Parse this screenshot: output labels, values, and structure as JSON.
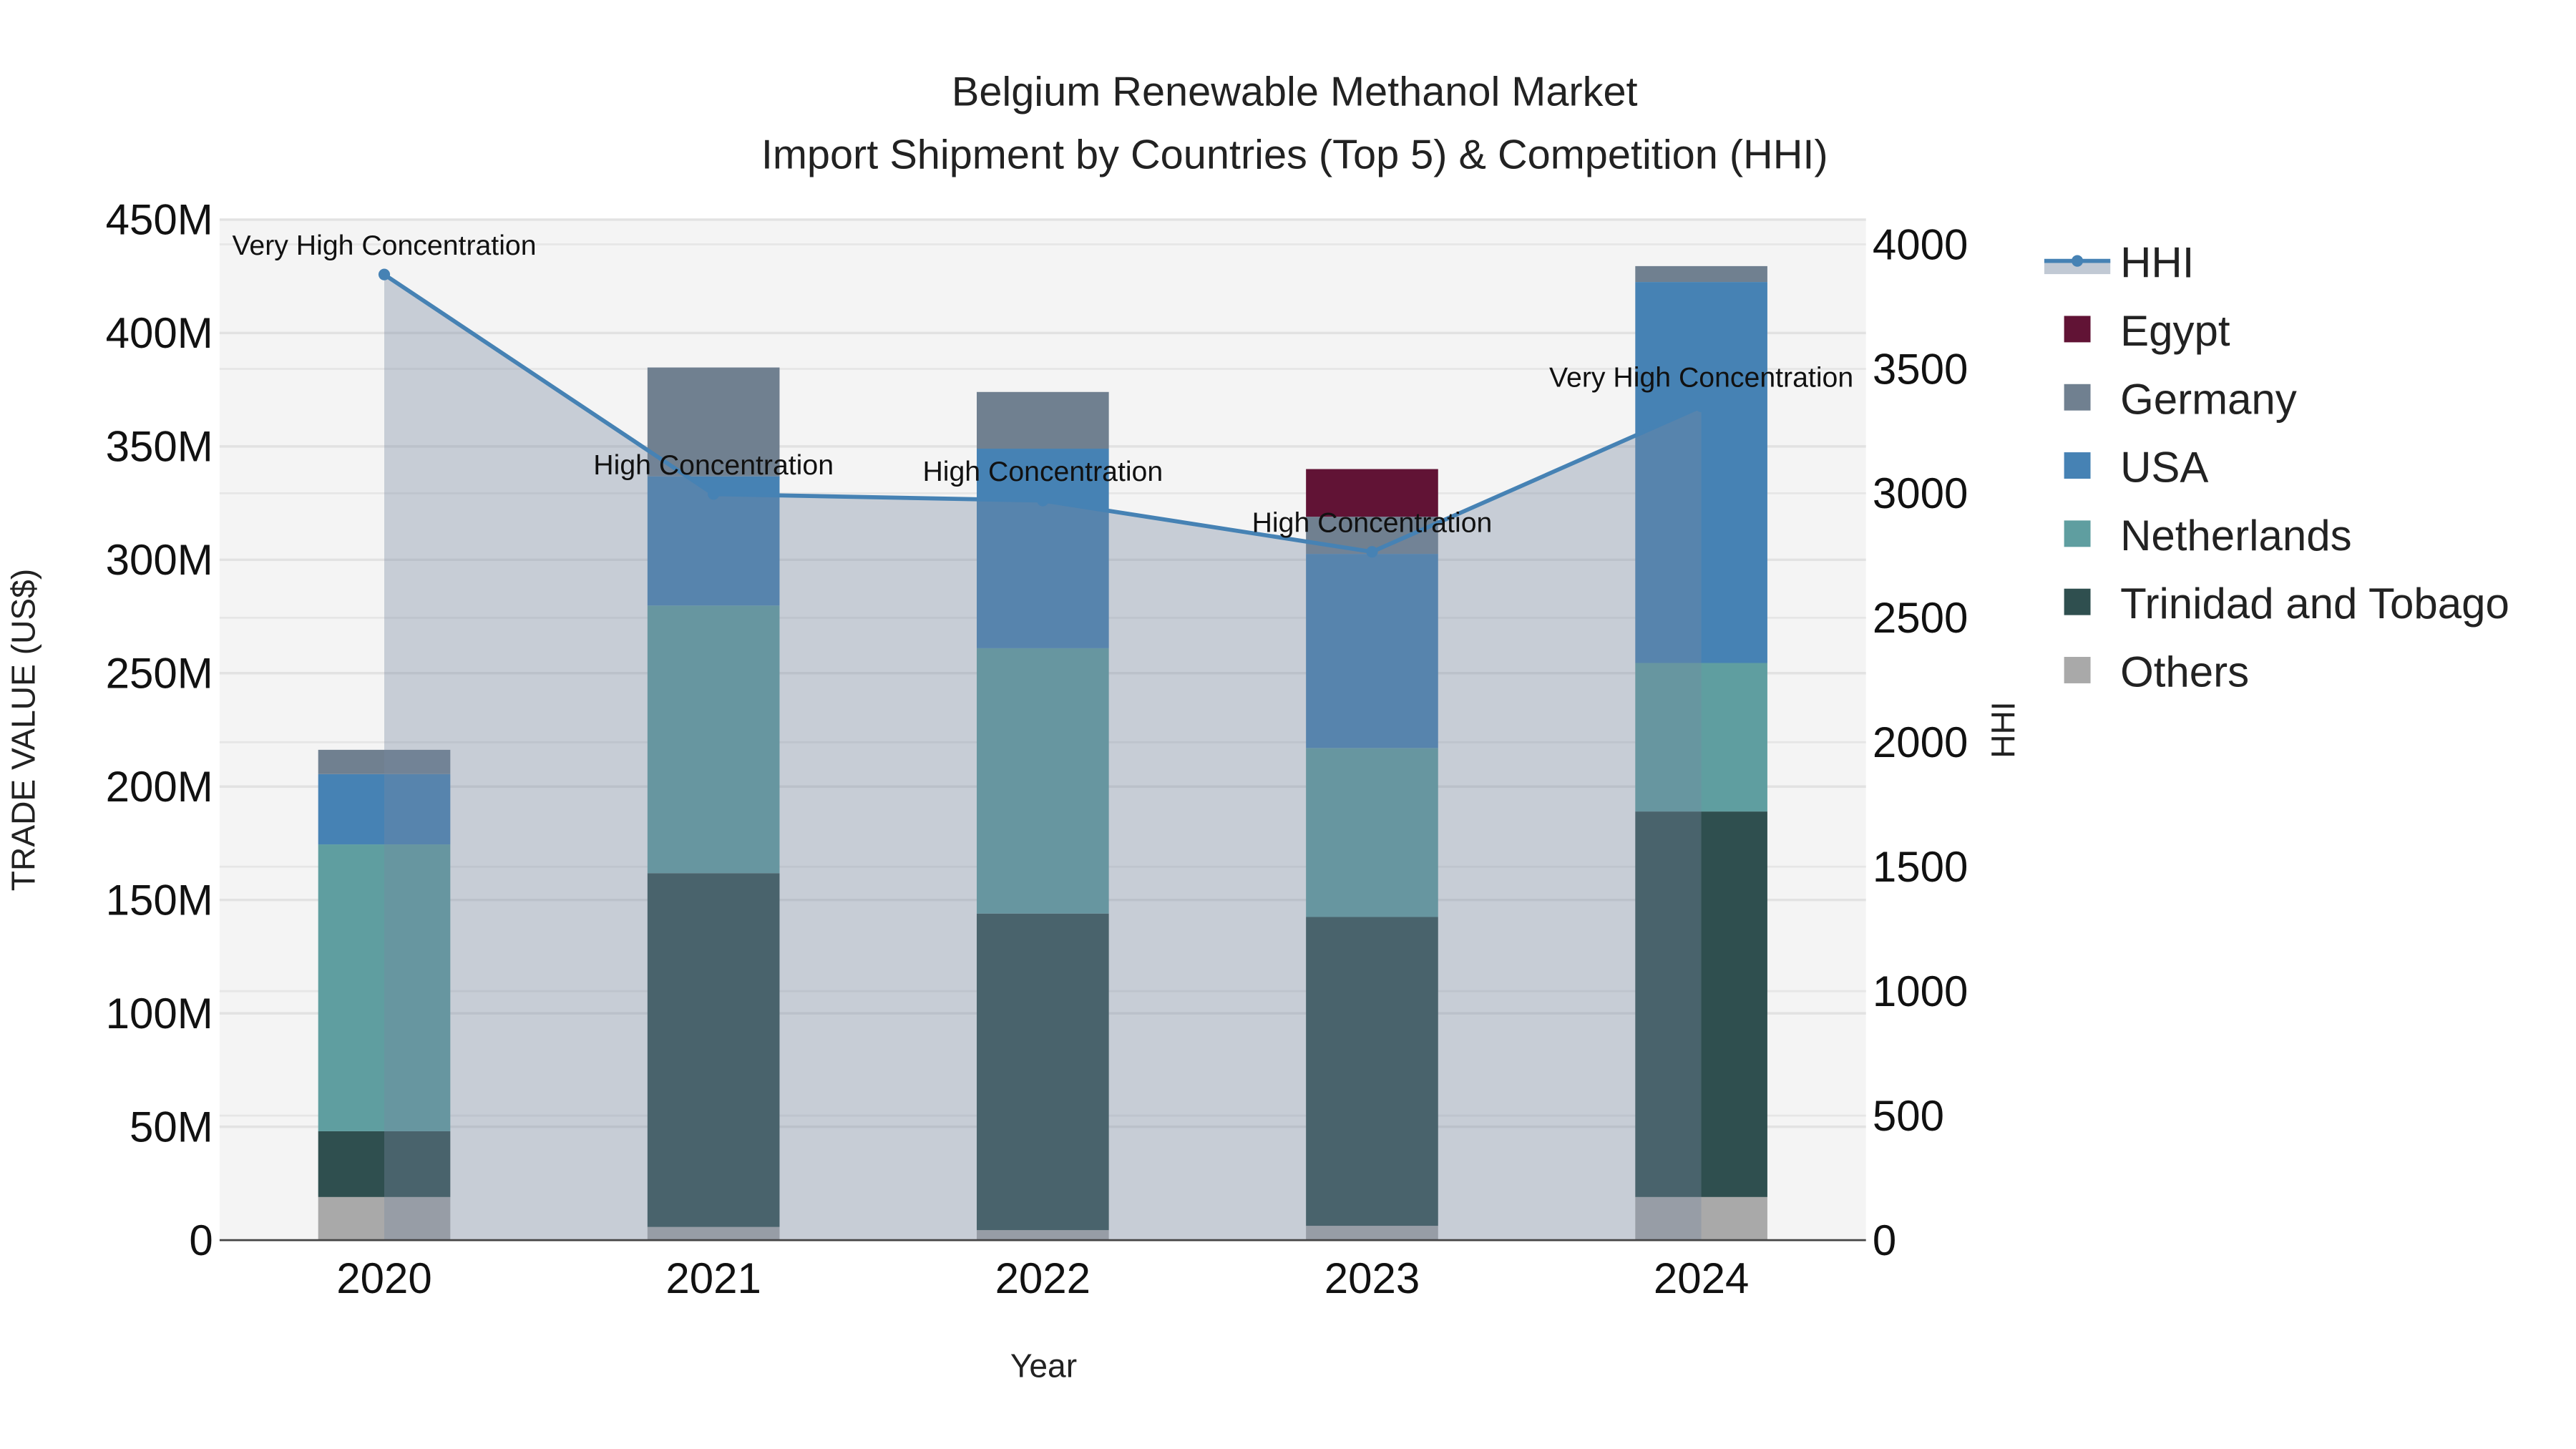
{
  "chart_data": {
    "type": "bar",
    "stacked": true,
    "title": "Belgium Renewable Methanol Market",
    "subtitle": "Import Shipment by Countries (Top 5) & Competition (HHI)",
    "xlabel": "Year",
    "ylabel": "TRADE VALUE (US$)",
    "y2label": "HHI",
    "categories": [
      "2020",
      "2021",
      "2022",
      "2023",
      "2024"
    ],
    "ylim": [
      0,
      450000000
    ],
    "y_ticks": [
      0,
      50000000,
      100000000,
      150000000,
      200000000,
      250000000,
      300000000,
      350000000,
      400000000,
      450000000
    ],
    "y_tick_labels": [
      "0",
      "50M",
      "100M",
      "150M",
      "200M",
      "250M",
      "300M",
      "350M",
      "400M",
      "450M"
    ],
    "y2lim": [
      0,
      4100
    ],
    "y2_ticks": [
      0,
      500,
      1000,
      1500,
      2000,
      2500,
      3000,
      3500,
      4000
    ],
    "y2_tick_labels": [
      "0",
      "500",
      "1000",
      "1500",
      "2000",
      "2500",
      "3000",
      "3500",
      "4000"
    ],
    "grid": true,
    "legend_position": "right",
    "series": [
      {
        "name": "Others",
        "color": "#A9A9A9",
        "values": [
          19000000,
          5800000,
          4400000,
          6300000,
          19000000
        ]
      },
      {
        "name": "Trinidad and Tobago",
        "color": "#2F4F4F",
        "values": [
          29000000,
          156000000,
          139600000,
          136200000,
          170000000
        ]
      },
      {
        "name": "Netherlands",
        "color": "#5F9EA0",
        "values": [
          126500000,
          118000000,
          117000000,
          74500000,
          65500000
        ]
      },
      {
        "name": "USA",
        "color": "#4682B4",
        "values": [
          31000000,
          57000000,
          88000000,
          85600000,
          168000000
        ]
      },
      {
        "name": "Germany",
        "color": "#708090",
        "values": [
          10700000,
          48000000,
          25000000,
          16400000,
          7000000
        ]
      },
      {
        "name": "Egypt",
        "color": "#611335",
        "values": [
          0,
          0,
          0,
          21000000,
          0
        ]
      }
    ],
    "legend_order": [
      "HHI",
      "Egypt",
      "Germany",
      "USA",
      "Netherlands",
      "Trinidad and Tobago",
      "Others"
    ],
    "hhi": {
      "name": "HHI",
      "color": "#4682B4",
      "values": [
        3879,
        2997,
        2971,
        2765,
        3349
      ],
      "annotations": [
        "Very High Concentration",
        "High Concentration",
        "High Concentration",
        "High Concentration",
        "Very High Concentration"
      ]
    }
  }
}
